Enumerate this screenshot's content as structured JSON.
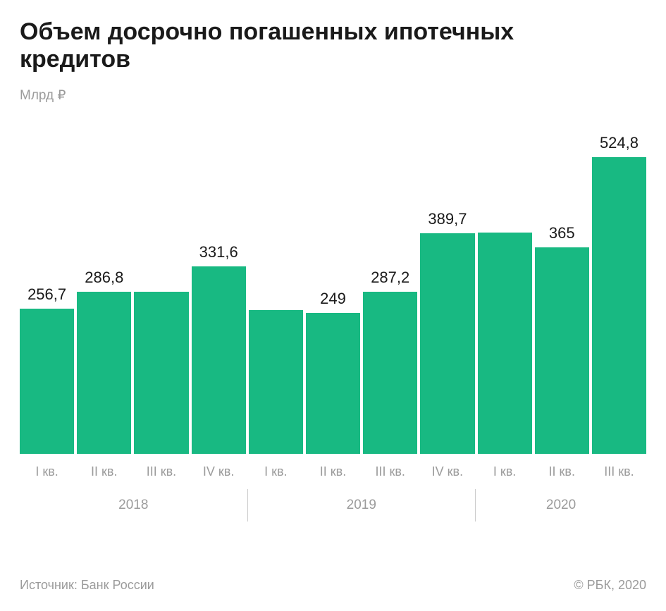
{
  "header": {
    "title": "Объем досрочно погашенных ипотечных кредитов",
    "unit": "Млрд ₽"
  },
  "chart_data": {
    "type": "bar",
    "title": "Объем досрочно погашенных ипотечных кредитов",
    "ylabel": "Млрд ₽",
    "xlabel": "",
    "ylim": [
      0,
      560
    ],
    "grid": false,
    "legend": "none",
    "bar_color": "#18b982",
    "categories": [
      "I кв.",
      "II кв.",
      "III кв.",
      "IV кв.",
      "I кв.",
      "II кв.",
      "III кв.",
      "IV кв.",
      "I кв.",
      "II кв.",
      "III кв."
    ],
    "values": [
      256.7,
      286.8,
      287,
      331.6,
      254,
      249,
      287.2,
      389.7,
      392,
      365,
      524.8
    ],
    "value_labels": [
      "256,7",
      "286,8",
      "",
      "331,6",
      "",
      "249",
      "287,2",
      "389,7",
      "",
      "365",
      "524,8"
    ],
    "year_groups": [
      {
        "label": "2018",
        "span": 4
      },
      {
        "label": "2019",
        "span": 4
      },
      {
        "label": "2020",
        "span": 3
      }
    ]
  },
  "footer": {
    "source": "Источник: Банк России",
    "copyright": "© РБК, 2020"
  }
}
